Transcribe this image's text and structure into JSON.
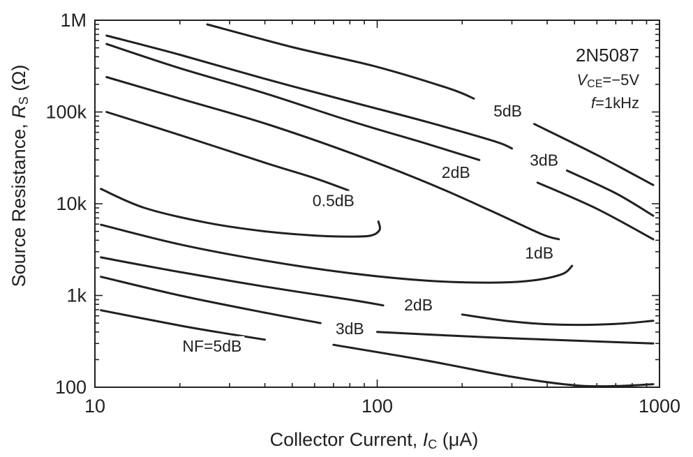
{
  "chart_data": {
    "type": "line",
    "xlabel": {
      "text": "Collector Current, ",
      "var": "I",
      "sub": "C",
      "unit": " (μA)"
    },
    "ylabel": {
      "text": "Source Resistance, ",
      "var": "R",
      "sub": "S",
      "unit": " (Ω)"
    },
    "xscale": "log",
    "yscale": "log",
    "xlim": [
      10,
      1000
    ],
    "ylim": [
      100,
      1000000
    ],
    "x_ticks": [
      {
        "value": 10,
        "label": "10"
      },
      {
        "value": 100,
        "label": "100"
      },
      {
        "value": 1000,
        "label": "1000"
      }
    ],
    "y_ticks": [
      {
        "value": 100,
        "label": "100"
      },
      {
        "value": 1000,
        "label": "1k"
      },
      {
        "value": 10000,
        "label": "10k"
      },
      {
        "value": 100000,
        "label": "100k"
      },
      {
        "value": 1000000,
        "label": "1M"
      }
    ],
    "grid": false,
    "annotation": {
      "part": "2N5087",
      "vce": {
        "var": "V",
        "sub": "CE",
        "value": "=−5V"
      },
      "freq": {
        "var": "f",
        "value": "=1kHz"
      }
    },
    "series": [
      {
        "name": "0.5dB",
        "label": "0.5dB",
        "points": [
          [
            11,
            100000
          ],
          [
            20,
            56000
          ],
          [
            40,
            28000
          ],
          [
            60,
            19000
          ],
          [
            79,
            14000
          ]
        ],
        "points2": [
          [
            10.5,
            14500
          ],
          [
            15,
            9000
          ],
          [
            25,
            6200
          ],
          [
            40,
            5000
          ],
          [
            60,
            4500
          ],
          [
            80,
            4380
          ],
          [
            95,
            4500
          ],
          [
            102,
            5200
          ],
          [
            101,
            6400
          ]
        ]
      },
      {
        "name": "1dB",
        "label": "1dB",
        "points": [
          [
            11,
            240000
          ],
          [
            20,
            140000
          ],
          [
            40,
            75000
          ],
          [
            80,
            36000
          ],
          [
            150,
            17000
          ],
          [
            250,
            8500
          ],
          [
            380,
            4700
          ],
          [
            440,
            4100
          ]
        ],
        "points2": [
          [
            10.5,
            5900
          ],
          [
            20,
            3600
          ],
          [
            40,
            2400
          ],
          [
            80,
            1750
          ],
          [
            150,
            1450
          ],
          [
            250,
            1380
          ],
          [
            350,
            1450
          ],
          [
            450,
            1700
          ],
          [
            490,
            2100
          ]
        ]
      },
      {
        "name": "2dB",
        "label": "2dB",
        "points": [
          [
            11,
            550000
          ],
          [
            20,
            300000
          ],
          [
            40,
            160000
          ],
          [
            80,
            80000
          ],
          [
            150,
            45000
          ],
          [
            230,
            30000
          ]
        ],
        "points3": [
          [
            370,
            17000
          ],
          [
            600,
            8800
          ],
          [
            950,
            4100
          ]
        ],
        "points2": [
          [
            10.5,
            2600
          ],
          [
            20,
            1800
          ],
          [
            40,
            1250
          ],
          [
            80,
            900
          ],
          [
            105,
            780
          ]
        ],
        "points4": [
          [
            200,
            620
          ],
          [
            300,
            520
          ],
          [
            450,
            480
          ],
          [
            700,
            490
          ],
          [
            950,
            530
          ]
        ]
      },
      {
        "name": "3dB",
        "label": "3dB",
        "points": [
          [
            11,
            680000
          ],
          [
            20,
            420000
          ],
          [
            40,
            230000
          ],
          [
            80,
            130000
          ],
          [
            150,
            78000
          ],
          [
            260,
            48000
          ],
          [
            300,
            40000
          ]
        ],
        "points3": [
          [
            470,
            23000
          ],
          [
            700,
            13000
          ],
          [
            950,
            7400
          ]
        ],
        "points2": [
          [
            10.5,
            1600
          ],
          [
            20,
            1000
          ],
          [
            40,
            650
          ],
          [
            63,
            500
          ]
        ],
        "points4": [
          [
            100,
            400
          ],
          [
            200,
            360
          ],
          [
            400,
            330
          ],
          [
            700,
            310
          ],
          [
            950,
            300
          ]
        ]
      },
      {
        "name": "5dB",
        "label": "5dB",
        "points": [
          [
            25,
            900000
          ],
          [
            50,
            510000
          ],
          [
            100,
            310000
          ],
          [
            180,
            180000
          ],
          [
            220,
            140000
          ]
        ],
        "points3": [
          [
            360,
            74000
          ],
          [
            600,
            34000
          ],
          [
            950,
            16000
          ]
        ],
        "points2": [
          [
            10.5,
            690
          ],
          [
            20,
            470
          ],
          [
            30,
            380
          ],
          [
            40,
            330
          ]
        ],
        "points4": [
          [
            70,
            290
          ],
          [
            150,
            195
          ],
          [
            300,
            130
          ],
          [
            500,
            105
          ],
          [
            700,
            103
          ],
          [
            950,
            108
          ]
        ],
        "second_label": "NF=5dB"
      }
    ],
    "curve_labels": [
      {
        "text": "0.5dB",
        "x": 70,
        "y": 10800
      },
      {
        "text": "1dB",
        "x": 375,
        "y": 2900
      },
      {
        "text": "2dB",
        "x": 190,
        "y": 22000
      },
      {
        "text": "3dB",
        "x": 390,
        "y": 30000
      },
      {
        "text": "5dB",
        "x": 290,
        "y": 103000
      },
      {
        "text": "2dB",
        "x": 140,
        "y": 790
      },
      {
        "text": "3dB",
        "x": 80,
        "y": 435
      },
      {
        "text": "NF=5dB",
        "x": 26,
        "y": 282
      }
    ]
  }
}
